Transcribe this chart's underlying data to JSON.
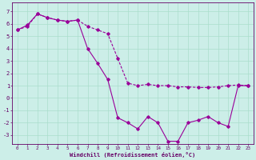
{
  "line1_x": [
    0,
    1,
    2,
    3,
    4,
    5,
    6,
    7,
    8,
    9,
    10,
    11,
    12,
    13,
    14,
    15,
    16,
    17,
    18,
    19,
    20,
    21,
    22,
    23
  ],
  "line1_y": [
    5.5,
    5.8,
    6.8,
    6.5,
    6.3,
    6.2,
    6.3,
    5.8,
    5.5,
    5.2,
    3.2,
    1.2,
    1.0,
    1.1,
    1.0,
    1.0,
    0.9,
    0.9,
    0.85,
    0.85,
    0.9,
    1.0,
    1.05,
    1.0
  ],
  "line2_x": [
    0,
    1,
    2,
    3,
    4,
    5,
    6,
    7,
    8,
    9,
    10,
    11,
    12,
    13,
    14,
    15,
    16,
    17,
    18,
    19,
    20,
    21,
    22,
    23
  ],
  "line2_y": [
    5.5,
    5.9,
    6.8,
    6.5,
    6.3,
    6.2,
    6.3,
    4.0,
    2.8,
    1.5,
    -1.6,
    -2.0,
    -2.5,
    -1.5,
    -2.0,
    -3.5,
    -3.5,
    -2.0,
    -1.8,
    -1.5,
    -2.0,
    -2.3,
    1.0,
    1.0
  ],
  "line_color": "#990099",
  "bg_color": "#cceee8",
  "grid_color": "#aaddcc",
  "xlabel": "Windchill (Refroidissement éolien,°C)",
  "xlim": [
    -0.5,
    23.5
  ],
  "ylim": [
    -3.7,
    7.7
  ],
  "yticks": [
    -3,
    -2,
    -1,
    0,
    1,
    2,
    3,
    4,
    5,
    6,
    7
  ],
  "xticks": [
    0,
    1,
    2,
    3,
    4,
    5,
    6,
    7,
    8,
    9,
    10,
    11,
    12,
    13,
    14,
    15,
    16,
    17,
    18,
    19,
    20,
    21,
    22,
    23
  ],
  "tick_color": "#660066",
  "axis_color": "#660066",
  "marker": "D",
  "markersize": 1.8,
  "linewidth": 0.8
}
